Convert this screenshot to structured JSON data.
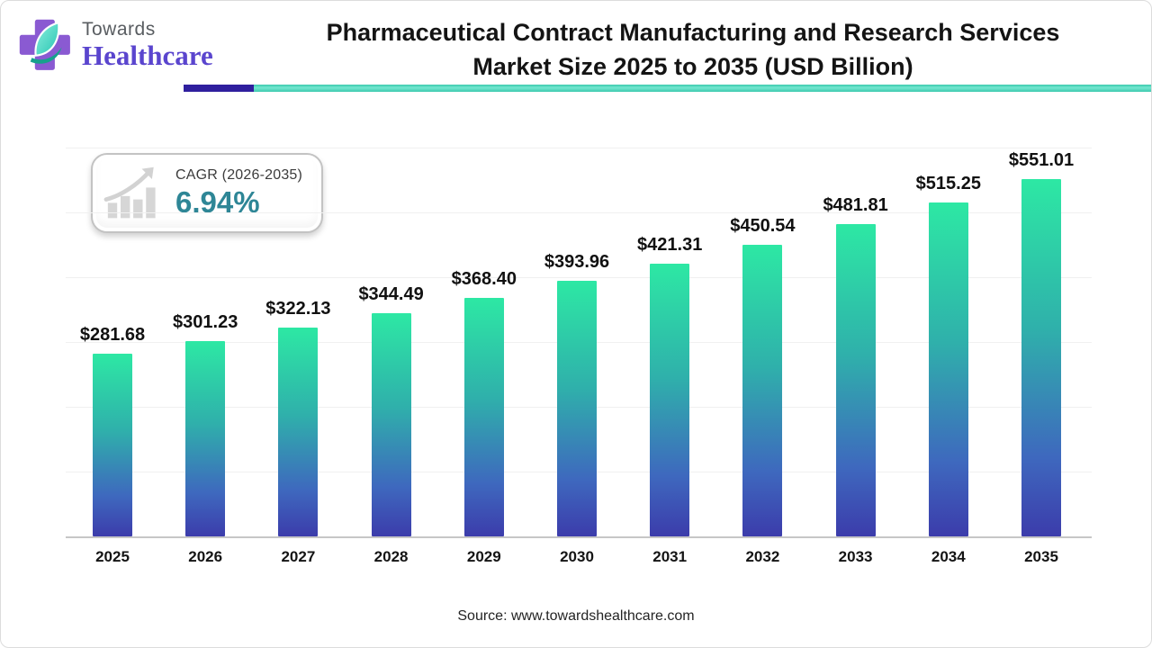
{
  "header": {
    "logo_towards": "Towards",
    "logo_healthcare": "Healthcare",
    "title_line1": "Pharmaceutical Contract Manufacturing and Research Services",
    "title_line2": "Market Size 2025 to 2035 (USD Billion)",
    "accent_purple": "#2f1f9e",
    "accent_teal": "#3cc9ad"
  },
  "badge": {
    "label": "CAGR (2026-2035)",
    "value": "6.94%",
    "value_color": "#2e8696",
    "icon": "bar-chart-growth-icon"
  },
  "chart_data": {
    "type": "bar",
    "title": "Pharmaceutical Contract Manufacturing and Research Services Market Size 2025 to 2035 (USD Billion)",
    "categories": [
      "2025",
      "2026",
      "2027",
      "2028",
      "2029",
      "2030",
      "2031",
      "2032",
      "2033",
      "2034",
      "2035"
    ],
    "values": [
      281.68,
      301.23,
      322.13,
      344.49,
      368.4,
      393.96,
      421.31,
      450.54,
      481.81,
      515.25,
      551.01
    ],
    "value_labels": [
      "$281.68",
      "$301.23",
      "$322.13",
      "$344.49",
      "$368.40",
      "$393.96",
      "$421.31",
      "$450.54",
      "$481.81",
      "$515.25",
      "$551.01"
    ],
    "xlabel": "",
    "ylabel": "",
    "ylim": [
      0,
      600
    ],
    "gridline_step": 100,
    "grid": true,
    "legend": "none",
    "bar_gradient": [
      "#2de8a4",
      "#2fb0ab",
      "#3e68be",
      "#3c3cab"
    ]
  },
  "footer": {
    "source": "Source: www.towardshealthcare.com"
  }
}
